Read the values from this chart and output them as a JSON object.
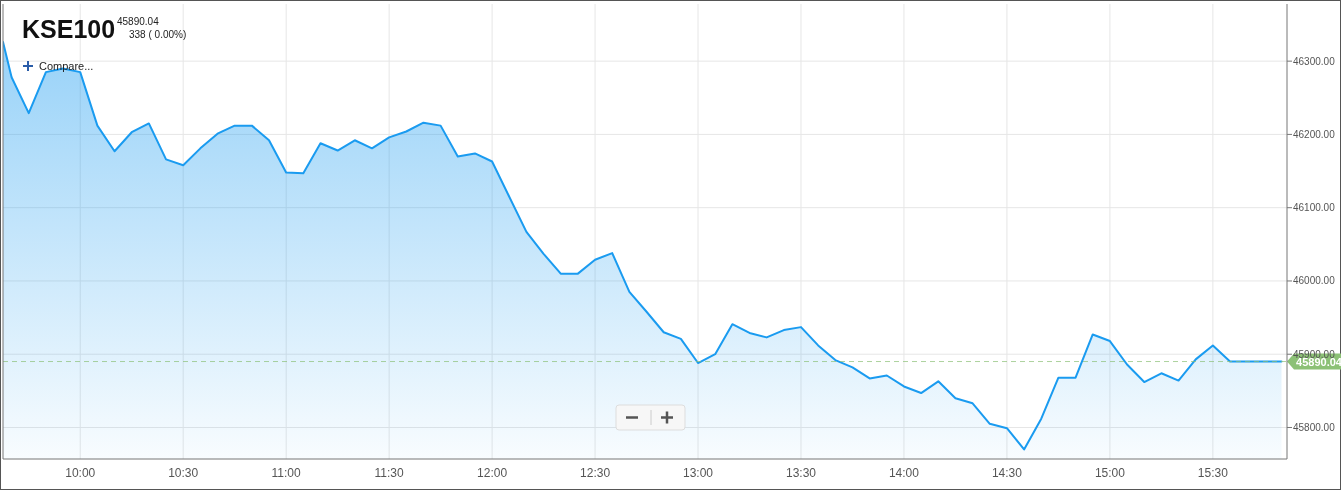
{
  "chart_data": {
    "type": "area",
    "title": "KSE100",
    "subtitle": "45890.04",
    "annotations": [
      "338 ( 0.00%)",
      "Compare..."
    ],
    "x": [
      9.625,
      9.6667,
      9.75,
      9.8333,
      9.9167,
      10,
      10.0833,
      10.1667,
      10.25,
      10.3333,
      10.4167,
      10.5,
      10.5833,
      10.6667,
      10.75,
      10.8333,
      10.9167,
      11,
      11.0833,
      11.1667,
      11.25,
      11.3333,
      11.4167,
      11.5,
      11.5833,
      11.6667,
      11.75,
      11.8333,
      11.9167,
      12,
      12.0833,
      12.1667,
      12.25,
      12.3333,
      12.4167,
      12.5,
      12.5833,
      12.6667,
      12.75,
      12.8333,
      12.9167,
      13,
      13.0833,
      13.1667,
      13.25,
      13.3333,
      13.4167,
      13.5,
      13.5833,
      13.6667,
      13.75,
      13.8333,
      13.9167,
      14,
      14.0833,
      14.1667,
      14.25,
      14.3333,
      14.4167,
      14.5,
      14.5833,
      14.6667,
      14.75,
      14.8333,
      14.9167,
      15,
      15.0833,
      15.1667,
      15.25,
      15.3333,
      15.4167,
      15.5,
      15.5833,
      15.6667,
      15.75,
      15.8333
    ],
    "series": [
      {
        "color": "#1a9bf0",
        "values": [
          46326,
          46278,
          46229,
          46285,
          46290,
          46285,
          46212,
          46177,
          46203,
          46215,
          46166,
          46158,
          46181,
          46201,
          46212,
          46212,
          46192,
          46148,
          46147,
          46188,
          46178,
          46192,
          46181,
          46196,
          46204,
          46216,
          46212,
          46170,
          46174,
          46163,
          46115,
          46067,
          46037,
          46010,
          46010,
          46029,
          46038,
          45985,
          45958,
          45930,
          45921,
          45888,
          45900,
          45941,
          45929,
          45923,
          45933,
          45937,
          45912,
          45892,
          45882,
          45867,
          45871,
          45856,
          45847,
          45863,
          45840,
          45833,
          45805,
          45799,
          45770,
          45812,
          45868,
          45868,
          45927,
          45918,
          45886,
          45862,
          45874,
          45864,
          45893,
          45912,
          45890,
          45890,
          45890,
          45890
        ]
      }
    ],
    "xlim": [
      9.625,
      15.86
    ],
    "xticks": [
      {
        "value": 10,
        "label": "10:00"
      },
      {
        "value": 10.5,
        "label": "10:30"
      },
      {
        "value": 11,
        "label": "11:00"
      },
      {
        "value": 11.5,
        "label": "11:30"
      },
      {
        "value": 12,
        "label": "12:00"
      },
      {
        "value": 12.5,
        "label": "12:30"
      },
      {
        "value": 13,
        "label": "13:00"
      },
      {
        "value": 13.5,
        "label": "13:30"
      },
      {
        "value": 14,
        "label": "14:00"
      },
      {
        "value": 14.5,
        "label": "14:30"
      },
      {
        "value": 15,
        "label": "15:00"
      },
      {
        "value": 15.5,
        "label": "15:30"
      }
    ],
    "ylim": [
      45757,
      46378
    ],
    "yticks": [
      {
        "value": 45800,
        "label": "45800.00"
      },
      {
        "value": 45900,
        "label": "45900.00"
      },
      {
        "value": 46000,
        "label": "46000.00"
      },
      {
        "value": 46100,
        "label": "46100.00"
      },
      {
        "value": 46200,
        "label": "46200.00"
      },
      {
        "value": 46300,
        "label": "46300.00"
      }
    ],
    "ref_lines": [
      {
        "axis": "y",
        "value": 45890.04,
        "label": "45890.04",
        "color": "#8cc176",
        "line_style": "dashed"
      }
    ],
    "grid": true
  }
}
